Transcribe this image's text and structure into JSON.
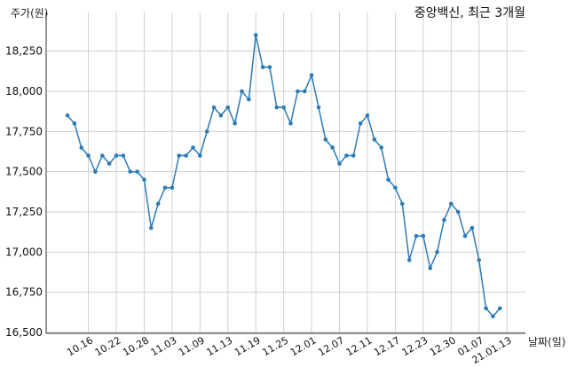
{
  "chart_data": {
    "type": "line",
    "title": "중앙백신, 최근 3개월",
    "xlabel": "날짜(일)",
    "ylabel": "주가(원)",
    "ylim": [
      16500,
      18400
    ],
    "y_ticks": [
      "16,500",
      "16,750",
      "17,000",
      "17,250",
      "17,500",
      "17,750",
      "18,000",
      "18,250"
    ],
    "y_tick_values": [
      16500,
      16750,
      17000,
      17250,
      17500,
      17750,
      18000,
      18250
    ],
    "grid": true,
    "x_ticks": [
      "10.16",
      "10.22",
      "10.28",
      "11.03",
      "11.09",
      "11.13",
      "11.19",
      "11.25",
      "12.01",
      "12.07",
      "12.11",
      "12.17",
      "12.23",
      "12.30",
      "01.07",
      "21.01.13"
    ],
    "x_tick_index": [
      3,
      7,
      11,
      15,
      19,
      23,
      27,
      31,
      35,
      39,
      43,
      47,
      51,
      55,
      59,
      63
    ],
    "series": [
      {
        "color": "#2c7bb6",
        "values": [
          17850,
          17800,
          17650,
          17600,
          17500,
          17600,
          17550,
          17600,
          17600,
          17500,
          17500,
          17450,
          17150,
          17300,
          17400,
          17400,
          17600,
          17600,
          17650,
          17600,
          17750,
          17900,
          17850,
          17900,
          17800,
          18000,
          17950,
          18350,
          18150,
          18150,
          17900,
          17900,
          17800,
          18000,
          18000,
          18100,
          17900,
          17700,
          17650,
          17550,
          17600,
          17600,
          17800,
          17850,
          17700,
          17650,
          17450,
          17400,
          17300,
          16950,
          17100,
          17100,
          16900,
          17000,
          17200,
          17300,
          17250,
          17100,
          17150,
          16950,
          16650,
          16600,
          16650
        ]
      }
    ]
  }
}
